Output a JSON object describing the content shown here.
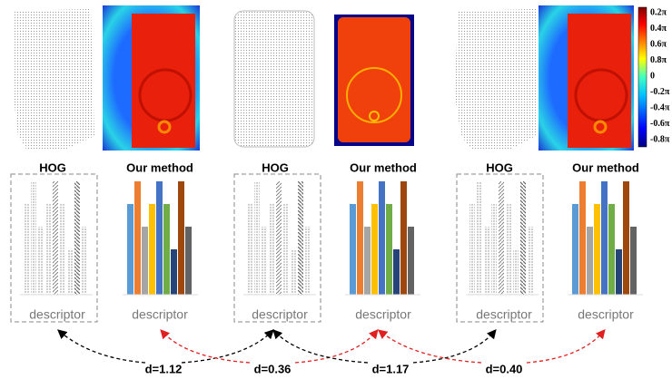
{
  "colorbar": {
    "labels": [
      "0.2π",
      "0.4π",
      "0.6π",
      "0.8π",
      "0",
      "-0.2π",
      "-0.4π",
      "-0.6π",
      "-0.8π"
    ]
  },
  "panels": [
    {
      "hog_label": "HOG",
      "method_label": "Our method",
      "hog_descriptor": "descriptor",
      "method_descriptor": "descriptor"
    },
    {
      "hog_label": "HOG",
      "method_label": "Our method",
      "hog_descriptor": "descriptor",
      "method_descriptor": "descriptor"
    },
    {
      "hog_label": "HOG",
      "method_label": "Our method",
      "hog_descriptor": "descriptor",
      "method_descriptor": "descriptor"
    }
  ],
  "distances": [
    "d=1.12",
    "d=0.36",
    "d=1.17",
    "d=0.40"
  ]
}
